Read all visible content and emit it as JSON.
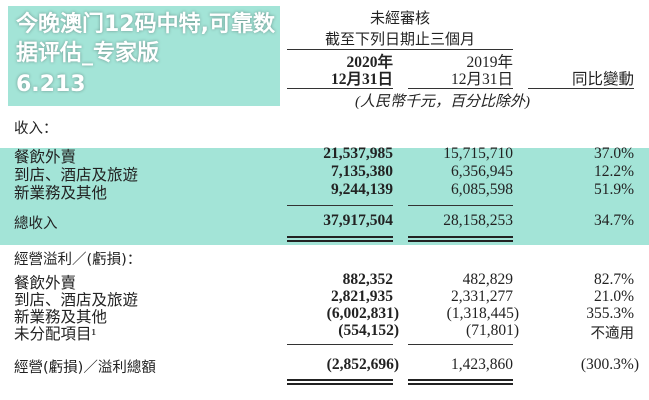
{
  "header": {
    "audit_status": "未經審核",
    "period": "截至下列日期止三個月",
    "col_2020_year": "2020年",
    "col_2020_date": "12月31日",
    "col_2019_year": "2019年",
    "col_2019_date": "12月31日",
    "col_change": "同比變動",
    "unit_note": "(人民幣千元，百分比除外)"
  },
  "revenue": {
    "heading": "收入：",
    "rows": [
      {
        "label": "餐飲外賣",
        "y2020": "21,537,985",
        "y2019": "15,715,710",
        "change": "37.0%"
      },
      {
        "label": "到店、酒店及旅遊",
        "y2020": "7,135,380",
        "y2019": "6,356,945",
        "change": "12.2%"
      },
      {
        "label": "新業務及其他",
        "y2020": "9,244,139",
        "y2019": "6,085,598",
        "change": "51.9%"
      }
    ],
    "total": {
      "label": "總收入",
      "y2020": "37,917,504",
      "y2019": "28,158,253",
      "change": "34.7%"
    }
  },
  "operating": {
    "heading": "經營溢利／(虧損)：",
    "rows": [
      {
        "label": "餐飲外賣",
        "y2020": "882,352",
        "y2019": "482,829",
        "change": "82.7%"
      },
      {
        "label": "到店、酒店及旅遊",
        "y2020": "2,821,935",
        "y2019": "2,331,277",
        "change": "21.0%"
      },
      {
        "label": "新業務及其他",
        "y2020": "(6,002,831)",
        "y2019": "(1,318,445)",
        "change": "355.3%"
      },
      {
        "label": "未分配項目¹",
        "y2020": "(554,152)",
        "y2019": "(71,801)",
        "change": "不適用"
      }
    ],
    "total": {
      "label": "經營(虧損)／溢利總額",
      "y2020": "(2,852,696)",
      "y2019": "1,423,860",
      "change": "(300.3%)"
    }
  },
  "overlay": {
    "line1": "今晚澳门12码中特,可靠数据评估_专家版",
    "line2": "6.213",
    "band_color": "#a3e4d7"
  }
}
